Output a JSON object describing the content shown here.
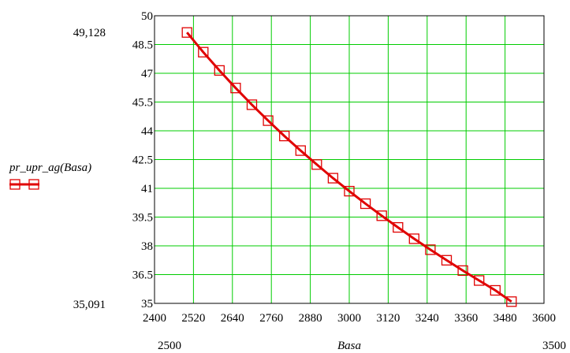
{
  "chart_data": {
    "type": "line",
    "xlabel": "Basa",
    "ylabel": "pr_upr_ag(Basa)",
    "xlim": [
      2400,
      3600
    ],
    "ylim": [
      35,
      50
    ],
    "x_ticks": [
      "2400",
      "2520",
      "2640",
      "2760",
      "2880",
      "3000",
      "3120",
      "3240",
      "3360",
      "3480",
      "3600"
    ],
    "y_ticks": [
      "50",
      "48.5",
      "47",
      "45.5",
      "44",
      "42.5",
      "41",
      "39.5",
      "38",
      "36.5",
      "35"
    ],
    "x_range_labels": {
      "min": "2500",
      "max": "3500"
    },
    "y_range_labels": {
      "max": "49,128",
      "min": "35,091"
    },
    "grid": true,
    "legend": "left",
    "series": [
      {
        "name": "pr_upr_ag(Basa)",
        "color": "#e00000",
        "marker": "square",
        "x": [
          2500,
          2550,
          2600,
          2650,
          2700,
          2750,
          2800,
          2850,
          2900,
          2950,
          3000,
          3050,
          3100,
          3150,
          3200,
          3250,
          3300,
          3350,
          3400,
          3450,
          3500
        ],
        "y": [
          49.128,
          48.1,
          47.15,
          46.23,
          45.36,
          44.53,
          43.73,
          42.97,
          42.24,
          41.53,
          40.85,
          40.2,
          39.57,
          38.96,
          38.37,
          37.8,
          37.25,
          36.71,
          36.19,
          35.68,
          35.091
        ]
      }
    ]
  }
}
